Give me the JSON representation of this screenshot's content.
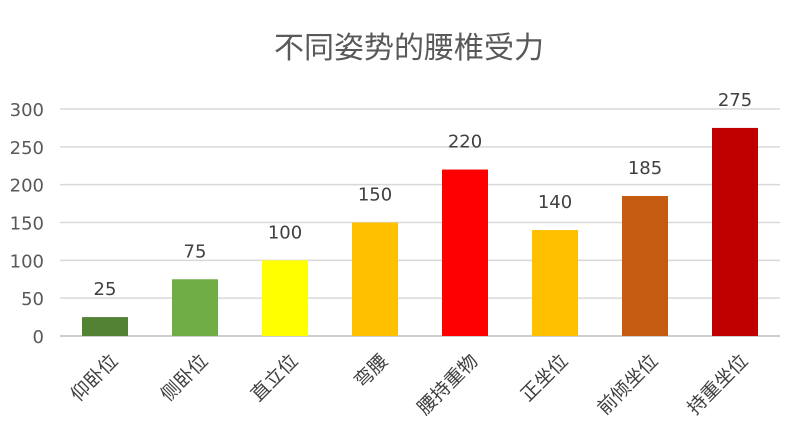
{
  "chart_data": {
    "type": "bar",
    "title": "不同姿势的腰椎受力",
    "xlabel": "",
    "ylabel": "",
    "categories": [
      "仰卧位",
      "侧卧位",
      "直立位",
      "弯腰",
      "腰持重物",
      "正坐位",
      "前倾坐位",
      "持重坐位"
    ],
    "values": [
      25,
      75,
      100,
      150,
      220,
      140,
      185,
      275
    ],
    "data_labels": [
      "25",
      "75",
      "100",
      "150",
      "220",
      "140",
      "185",
      "275"
    ],
    "bar_colors": [
      "#548235",
      "#70ad47",
      "#ffff00",
      "#ffc000",
      "#ff0000",
      "#ffc000",
      "#c55a11",
      "#c00000"
    ],
    "ylim": [
      0,
      300
    ],
    "yticks": [
      0,
      50,
      100,
      150,
      200,
      250,
      300
    ],
    "ytick_labels": [
      "0",
      "50",
      "100",
      "150",
      "200",
      "250",
      "300"
    ],
    "grid": true,
    "legend": "none"
  }
}
